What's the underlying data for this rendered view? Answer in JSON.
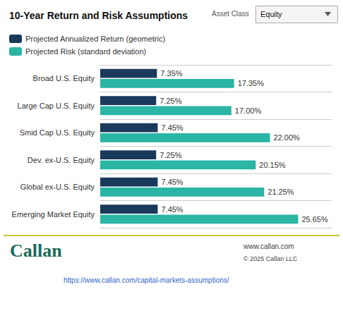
{
  "chart_data": {
    "type": "bar",
    "orientation": "horizontal",
    "title": "10-Year Return and Risk Assumptions",
    "categories": [
      "Broad U.S. Equity",
      "Large Cap U.S. Equity",
      "Smid Cap U.S. Equity",
      "Dev. ex-U.S. Equity",
      "Global ex-U.S. Equity",
      "Emerging Market Equity"
    ],
    "series": [
      {
        "name": "Projected Annualized Return (geometric)",
        "color": "#1a3a5c",
        "values": [
          7.35,
          7.25,
          7.45,
          7.25,
          7.45,
          7.45
        ],
        "value_labels": [
          "7.35%",
          "7.25%",
          "7.45%",
          "7.25%",
          "7.45%",
          "7.45%"
        ]
      },
      {
        "name": "Projected Risk (standard deviation)",
        "color": "#2ab5a5",
        "values": [
          17.35,
          17.0,
          22.0,
          20.15,
          21.25,
          25.65
        ],
        "value_labels": [
          "17.35%",
          "17.00%",
          "22.00%",
          "20.15%",
          "21.25%",
          "25.65%"
        ]
      }
    ],
    "xlim": [
      0,
      30
    ],
    "tick_labels": "y",
    "data_labels": true,
    "grid": true,
    "legend": "top left",
    "annotations": [
      "Asset Class",
      "Equity",
      "Callan",
      "www.callan.com",
      "© 2025 Callan LLC",
      "https://www.callan.com/capital-markets-assumptions/"
    ]
  }
}
